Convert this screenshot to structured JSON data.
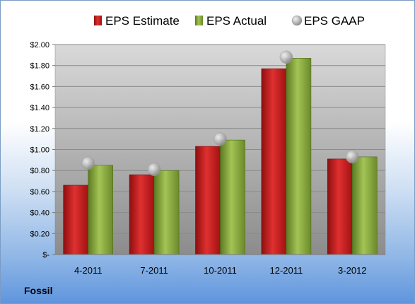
{
  "chart_data": {
    "type": "bar",
    "categories": [
      "4-2011",
      "7-2011",
      "10-2011",
      "12-2011",
      "3-2012"
    ],
    "series": [
      {
        "name": "EPS Estimate",
        "color": "#cc1f1f",
        "values": [
          0.66,
          0.76,
          1.03,
          1.77,
          0.91
        ]
      },
      {
        "name": "EPS Actual",
        "color": "#86a83a",
        "values": [
          0.85,
          0.8,
          1.09,
          1.87,
          0.93
        ]
      }
    ],
    "points": {
      "name": "EPS GAAP",
      "color": "#b8b8b8",
      "values": [
        0.87,
        0.81,
        1.1,
        1.88,
        0.93
      ]
    },
    "ylim": [
      0,
      2.0
    ],
    "yticks": [
      "$-",
      "$0.20",
      "$0.40",
      "$0.60",
      "$0.80",
      "$1.00",
      "$1.20",
      "$1.40",
      "$1.60",
      "$1.80",
      "$2.00"
    ],
    "grid": true,
    "legend_position": "top"
  },
  "company": "Fossil"
}
